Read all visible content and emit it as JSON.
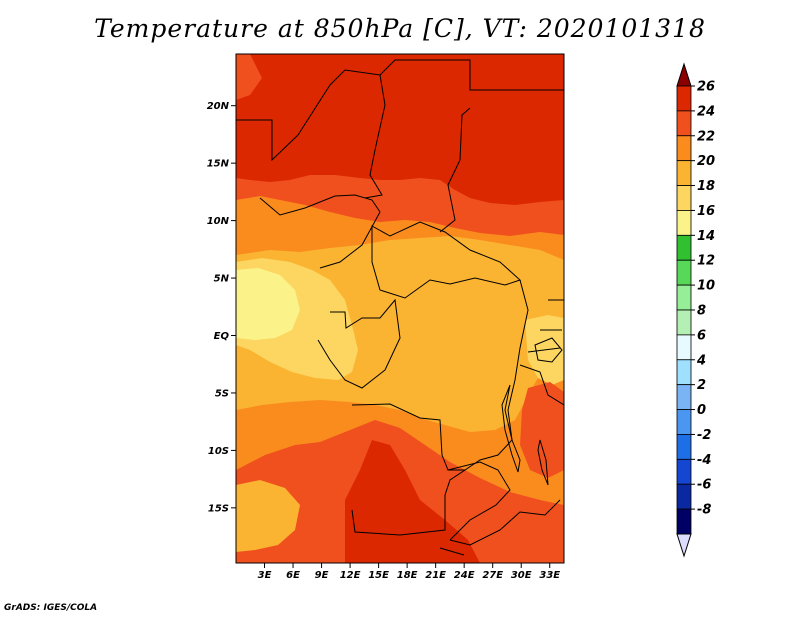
{
  "title": "Temperature at 850hPa [C], VT: 2020101318",
  "credit": "GrADS: IGES/COLA",
  "axes": {
    "lat_labels": [
      "20N",
      "15N",
      "10N",
      "5N",
      "EQ",
      "5S",
      "10S",
      "15S"
    ],
    "lat_values": [
      20,
      15,
      10,
      5,
      0,
      -5,
      -10,
      -15
    ],
    "lon_labels": [
      "3E",
      "6E",
      "9E",
      "12E",
      "15E",
      "18E",
      "21E",
      "24E",
      "27E",
      "30E",
      "33E"
    ],
    "lon_values": [
      3,
      6,
      9,
      12,
      15,
      18,
      21,
      24,
      27,
      30,
      33
    ],
    "lon_range": [
      0,
      34.5
    ],
    "lat_range": [
      -19.8,
      24.5
    ]
  },
  "colorbar": {
    "labels": [
      "26",
      "24",
      "22",
      "20",
      "18",
      "16",
      "14",
      "12",
      "10",
      "8",
      "6",
      "4",
      "2",
      "0",
      "-2",
      "-4",
      "-6",
      "-8"
    ],
    "colors": [
      "#8b0000",
      "#dc2800",
      "#f0501e",
      "#fa8c1e",
      "#fab432",
      "#fcd661",
      "#fcf28a",
      "#30c030",
      "#58d858",
      "#96ee96",
      "#b4f0b4",
      "#e6faff",
      "#a0e0ff",
      "#7ab4f4",
      "#4b96f0",
      "#1e6ee6",
      "#1446d2",
      "#0a28a0",
      "#000064",
      "#dcdcff"
    ]
  },
  "field_colors": {
    "t24": "#dc2800",
    "t22": "#f0501e",
    "t20": "#fa8c1e",
    "t18": "#fab432",
    "t16": "#fcd661",
    "t14": "#fcf28a",
    "border": "#000000"
  }
}
